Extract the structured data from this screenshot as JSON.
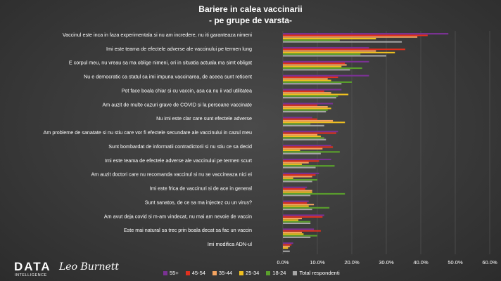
{
  "title_line_1": "Bariere in calea vaccinarii",
  "title_line_2": "- pe grupe de varsta-",
  "colors": {
    "55+": "#7b3294",
    "45-54": "#e0301e",
    "35-44": "#f4a460",
    "25-34": "#f0c020",
    "18-24": "#5aa02c",
    "Total respondenti": "#a6a6a6"
  },
  "logo": {
    "brand": "DATA",
    "sub": "INTELLIGENCE",
    "signature": "Leo Burnett"
  },
  "chart_data": {
    "type": "bar",
    "orientation": "horizontal",
    "categories": [
      "Vaccinul este inca in faza experimentala si nu am incredere, nu iti garanteaza nimeni",
      "Imi este teama de efectele adverse ale vaccinului pe termen lung",
      "E corpul meu, nu vreau sa ma oblige nimeni, ori in situatia actuala ma simt obligat",
      "Nu e democratic ca statul sa imi impuna vaccinarea, de aceea sunt reticent",
      "Pot face boala chiar si cu vaccin, asa ca nu ii vad utilitatea",
      "Am auzit de multe cazuri grave de COVID si la persoane vaccinate",
      "Nu imi este clar care sunt efectele adverse",
      "Am probleme de sanatate si nu stiu care vor fi efectele secundare ale vaccinului in cazul meu",
      "Sunt bombardat de informatii contradictorii si nu stiu ce sa decid",
      "Imi este teama de efectele adverse ale vaccinului pe termen scurt",
      "Am auzit doctori care nu recomanda vaccinul si nu se vaccineaza nici ei",
      "Imi este frica de vaccinuri si de ace in general",
      "Sunt sanatos, de ce sa ma injectez cu un virus?",
      "Am avut deja covid si m-am vindecat, nu mai am nevoie de vaccin",
      "Este mai natural sa trec prin boala decat sa fac un vaccin",
      "Imi modifica ADN-ul"
    ],
    "series": [
      {
        "name": "55+",
        "values": [
          48.0,
          25.0,
          25.0,
          25.0,
          17.0,
          14.5,
          8.5,
          16.0,
          14.0,
          14.0,
          10.5,
          7.0,
          7.5,
          12.0,
          9.0,
          3.0
        ]
      },
      {
        "name": "45-54",
        "values": [
          42.0,
          35.5,
          18.0,
          16.0,
          12.0,
          10.0,
          10.0,
          15.5,
          14.5,
          10.5,
          9.5,
          6.5,
          7.0,
          11.5,
          11.0,
          2.5
        ]
      },
      {
        "name": "35-44",
        "values": [
          39.0,
          27.0,
          18.5,
          13.0,
          14.0,
          13.0,
          14.5,
          10.0,
          11.5,
          7.5,
          8.5,
          8.5,
          9.0,
          5.5,
          5.5,
          2.0
        ]
      },
      {
        "name": "25-34",
        "values": [
          27.0,
          32.5,
          17.0,
          14.0,
          19.0,
          14.0,
          18.0,
          11.0,
          5.0,
          5.5,
          3.0,
          8.5,
          7.5,
          4.5,
          6.0,
          1.5
        ]
      },
      {
        "name": "18-24",
        "values": [
          16.5,
          22.5,
          23.0,
          20.0,
          16.0,
          13.0,
          8.0,
          12.0,
          16.5,
          15.0,
          10.0,
          18.0,
          13.5,
          8.0,
          10.0,
          0.0
        ]
      },
      {
        "name": "Total respondenti",
        "values": [
          34.5,
          30.0,
          19.5,
          17.0,
          15.5,
          12.5,
          12.0,
          12.5,
          11.0,
          9.5,
          8.5,
          8.0,
          8.5,
          8.0,
          8.0,
          2.0
        ]
      }
    ],
    "xlim": [
      0,
      60
    ],
    "x_ticks": [
      "0.0%",
      "10.0%",
      "20.0%",
      "30.0%",
      "40.0%",
      "50.0%",
      "60.0%"
    ],
    "grid": true,
    "legend_position": "bottom"
  }
}
